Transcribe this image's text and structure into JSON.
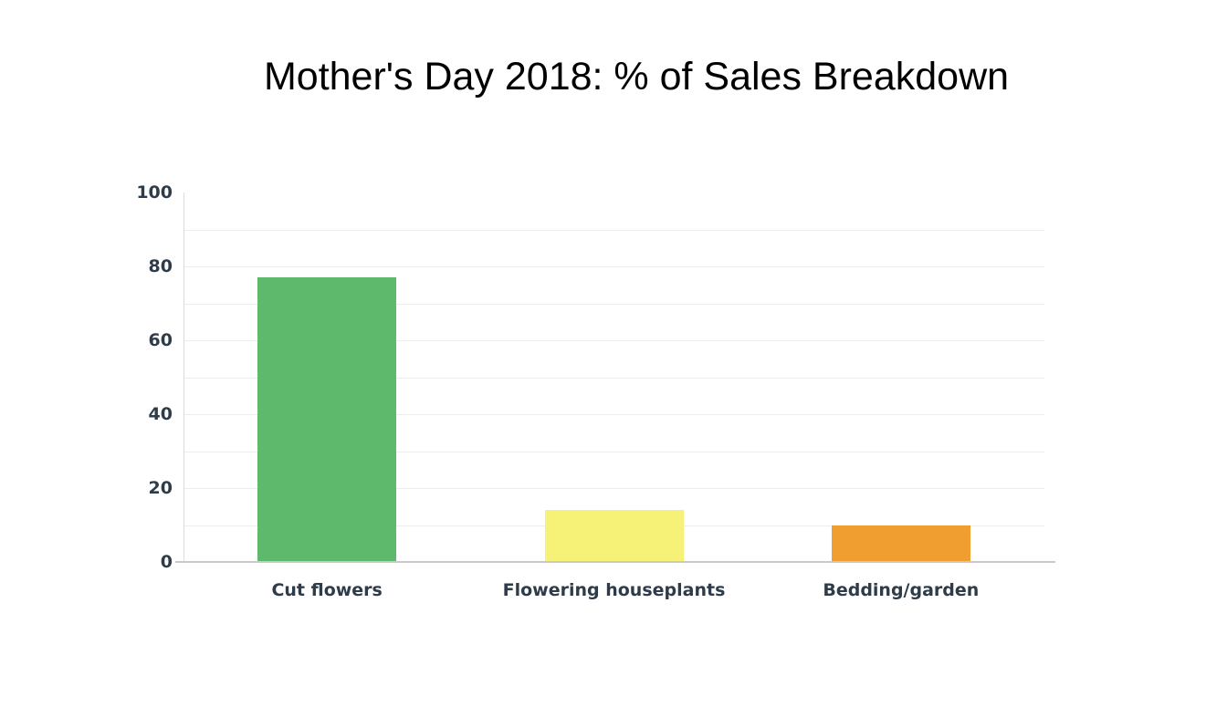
{
  "chart_data": {
    "type": "bar",
    "title": "Mother's Day 2018: % of Sales Breakdown",
    "categories": [
      "Cut flowers",
      "Flowering houseplants",
      "Bedding/garden"
    ],
    "values": [
      77,
      14,
      10
    ],
    "bar_colors": [
      "#5fb96d",
      "#f6f277",
      "#f09e30"
    ],
    "xlabel": "",
    "ylabel": "",
    "ylim": [
      0,
      100
    ],
    "y_ticks": [
      0,
      20,
      40,
      60,
      80,
      100
    ],
    "grid_interval": 10,
    "grid": true,
    "legend": "none",
    "style": {
      "background_color": "#ffffff",
      "title_color": "#000000",
      "grid_color": "#ededed",
      "baseline_color": "#c9c9c9",
      "axis_line_color": "#dcdcdc",
      "tick_label_color": "#2e3c49",
      "category_label_color": "#2e3c49"
    }
  }
}
